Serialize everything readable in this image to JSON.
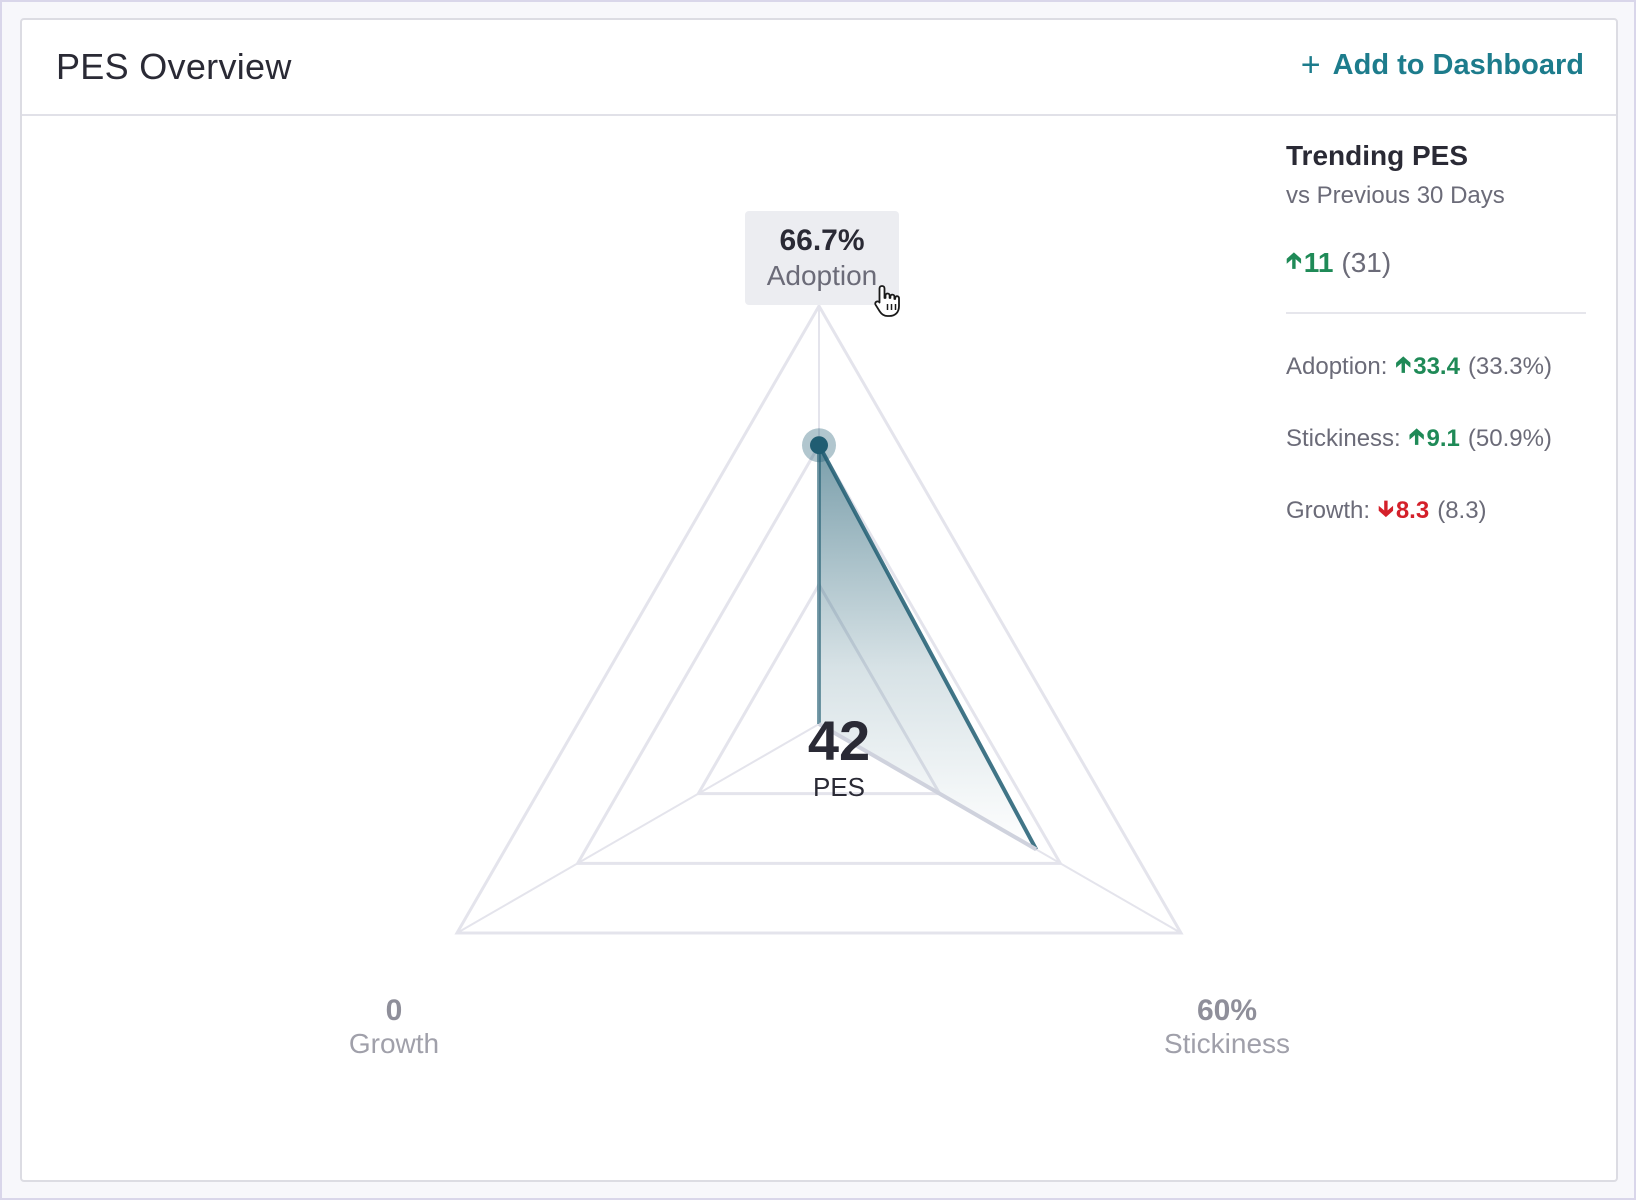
{
  "header": {
    "title": "PES Overview",
    "add_button_label": "Add to Dashboard"
  },
  "chart_data": {
    "type": "radar",
    "center": {
      "value": "42",
      "label": "PES"
    },
    "axes": [
      {
        "name": "Adoption",
        "display": "66.7%",
        "value": 66.7
      },
      {
        "name": "Growth",
        "display": "0",
        "value": 0
      },
      {
        "name": "Stickiness",
        "display": "60%",
        "value": 60
      }
    ],
    "tooltip": {
      "value": "66.7%",
      "label": "Adoption"
    }
  },
  "trending": {
    "title": "Trending PES",
    "subtitle": "vs Previous 30 Days",
    "change": "11",
    "change_direction": "up",
    "previous": "(31)",
    "metrics": [
      {
        "label": "Adoption:",
        "change": "33.4",
        "direction": "up",
        "previous": "(33.3%)"
      },
      {
        "label": "Stickiness:",
        "change": "9.1",
        "direction": "up",
        "previous": "(50.9%)"
      },
      {
        "label": "Growth:",
        "change": "8.3",
        "direction": "down",
        "previous": "(8.3)"
      }
    ]
  },
  "colors": {
    "accent": "#1d7c8c",
    "series_dark": "#205d72",
    "grid": "#e4e4ec",
    "up": "#1f8a57",
    "down": "#d4202a"
  }
}
